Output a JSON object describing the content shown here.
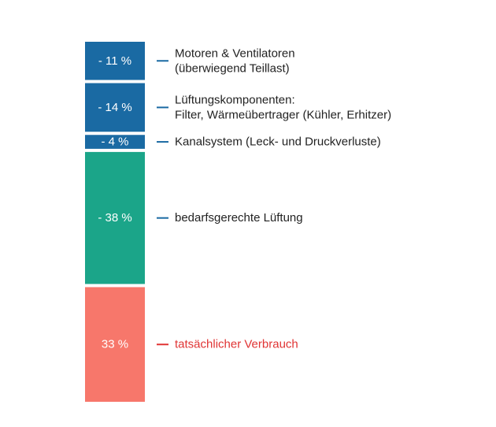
{
  "chart_data": {
    "type": "bar",
    "orientation": "stacked-vertical",
    "total": 100,
    "segments": [
      {
        "label": "- 11 %",
        "value": 11,
        "color": "#1a6aa3",
        "text_color": "#1a6aa3",
        "description": [
          "Motoren & Ventilatoren",
          "(überwiegend Teillast)"
        ]
      },
      {
        "label": "- 14 %",
        "value": 14,
        "color": "#1a6aa3",
        "text_color": "#1a6aa3",
        "description": [
          "Lüftungskomponenten:",
          "Filter, Wärmeübertrager (Kühler, Erhitzer)"
        ]
      },
      {
        "label": "- 4 %",
        "value": 4,
        "color": "#1a6aa3",
        "text_color": "#1a6aa3",
        "description": [
          "Kanalsystem (Leck- und Druckverluste)"
        ]
      },
      {
        "label": "- 38 %",
        "value": 38,
        "color": "#1ba589",
        "text_color": "#1a6aa3",
        "description": [
          "bedarfsgerechte Lüftung"
        ]
      },
      {
        "label": "33 %",
        "value": 33,
        "color": "#f7776b",
        "text_color": "#e03434",
        "description": [
          "tatsächlicher Verbrauch"
        ]
      }
    ],
    "label_text_color": "#222222"
  }
}
